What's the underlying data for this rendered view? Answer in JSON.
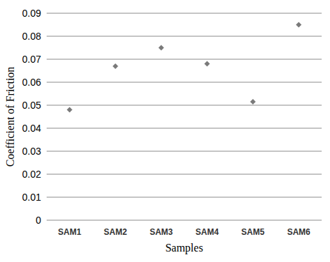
{
  "chart_data": {
    "type": "scatter",
    "x_label": "Samples",
    "y_label": "Coefficient of Friction",
    "categories": [
      "SAM1",
      "SAM2",
      "SAM3",
      "SAM4",
      "SAM5",
      "SAM6"
    ],
    "values": [
      0.048,
      0.067,
      0.075,
      0.068,
      0.0515,
      0.085
    ],
    "color": "#7a7a7a",
    "marker": "diamond",
    "ylim": [
      0,
      0.09
    ],
    "yticks": [
      0,
      0.01,
      0.02,
      0.03,
      0.04,
      0.05,
      0.06,
      0.07,
      0.08,
      0.09
    ],
    "grid": true
  }
}
